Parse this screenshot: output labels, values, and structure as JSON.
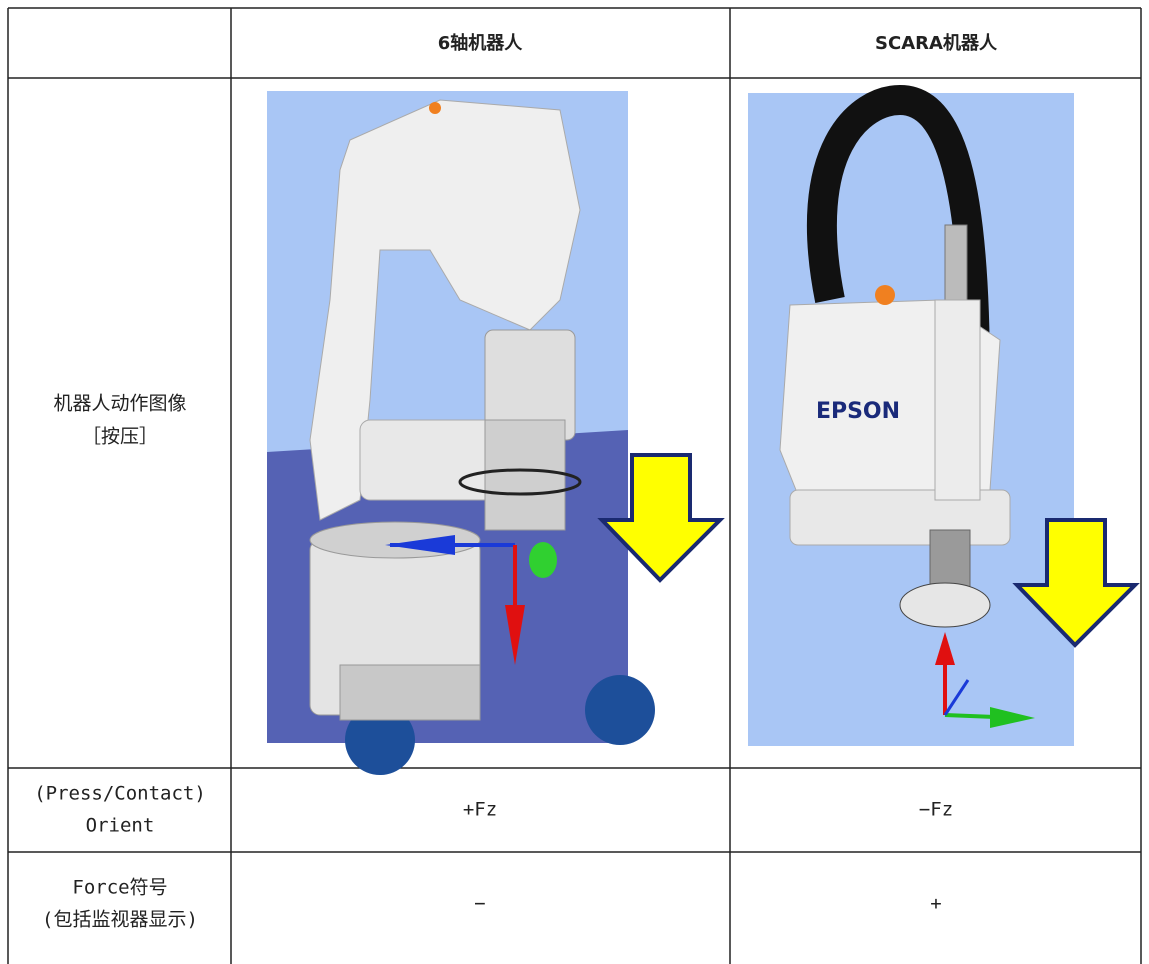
{
  "table": {
    "columns": [
      "6轴机器人",
      "SCARA机器人"
    ],
    "rows": [
      {
        "label": [
          "机器人动作图像",
          "［按压］"
        ]
      },
      {
        "label": [
          "(Press/Contact)",
          "Orient"
        ],
        "cells": [
          "+Fz",
          "−Fz"
        ]
      },
      {
        "label": [
          "Force符号",
          "(包括监视器显示)"
        ],
        "cells": [
          "−",
          "+"
        ]
      }
    ]
  },
  "images": {
    "scara_logo": "EPSON"
  }
}
